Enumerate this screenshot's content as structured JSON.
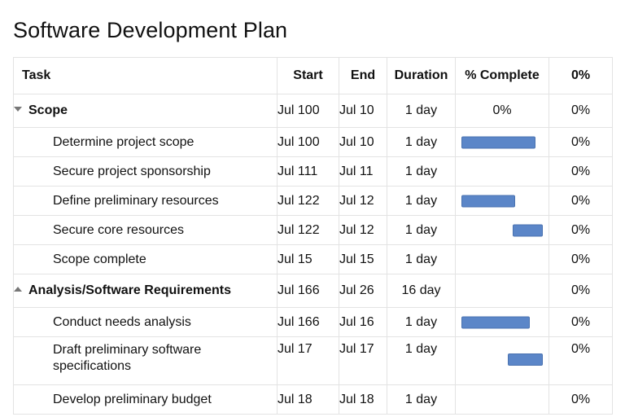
{
  "title": "Software Development Plan",
  "columns": {
    "task": "Task",
    "start": "Start",
    "end": "End",
    "duration": "Duration",
    "complete": "% Complete",
    "last": "0%"
  },
  "colors": {
    "bar": "#5b86c8",
    "grid": "#e3e3e3"
  },
  "groups": [
    {
      "label": "Scope",
      "icon": "triangle-down-icon",
      "start": "Jul 100",
      "end": "Jul 10",
      "duration": "1 day",
      "complete": "0%",
      "last": "0%",
      "tasks": [
        {
          "label": "Determine project scope",
          "start": "Jul 100",
          "end": "Jul 10",
          "duration": "1 day",
          "last": "0%",
          "progress_bar": {
            "from": 0.06,
            "to": 0.86
          }
        },
        {
          "label": "Secure project sponsorship",
          "start": "Jul 111",
          "end": "Jul 11",
          "duration": "1 day",
          "last": "0%",
          "progress_bar": null
        },
        {
          "label": "Define preliminary resources",
          "start": "Jul 122",
          "end": "Jul 12",
          "duration": "1 day",
          "last": "0%",
          "progress_bar": {
            "from": 0.06,
            "to": 0.64
          }
        },
        {
          "label": "Secure core resources",
          "start": "Jul 122",
          "end": "Jul 12",
          "duration": "1 day",
          "last": "0%",
          "progress_bar": {
            "from": 0.61,
            "to": 0.94
          }
        },
        {
          "label": "Scope complete",
          "start": "Jul 15",
          "end": "Jul 15",
          "duration": "1 day",
          "last": "0%",
          "progress_bar": null
        }
      ]
    },
    {
      "label": "Analysis/Software Requirements",
      "icon": "triangle-up-icon",
      "start": "Jul 166",
      "end": "Jul 26",
      "duration": "16 day",
      "complete": "",
      "last": "0%",
      "tasks": [
        {
          "label": "Conduct needs analysis",
          "start": "Jul 166",
          "end": "Jul 16",
          "duration": "1 day",
          "last": "0%",
          "progress_bar": {
            "from": 0.06,
            "to": 0.8
          }
        },
        {
          "label": "Draft preliminary software specifications",
          "start": "Jul 17",
          "end": "Jul 17",
          "duration": "1 day",
          "last": "0%",
          "progress_bar": {
            "from": 0.56,
            "to": 0.94
          }
        },
        {
          "label": "Develop preliminary budget",
          "start": "Jul 18",
          "end": "Jul 18",
          "duration": "1 day",
          "last": "0%",
          "progress_bar": null
        }
      ]
    }
  ]
}
